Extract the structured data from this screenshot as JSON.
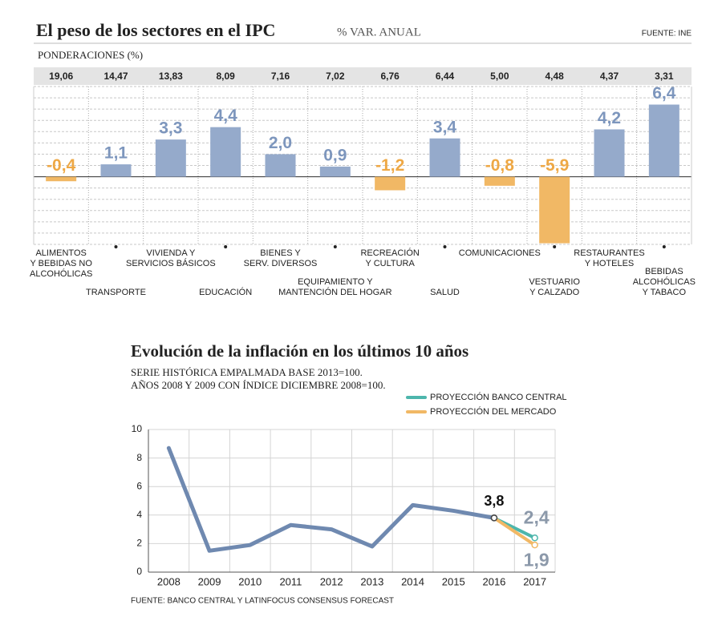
{
  "chart_data": [
    {
      "type": "bar",
      "title": "El peso de los sectores en el IPC",
      "subtitle": "% VAR. ANUAL",
      "source": "FUENTE: INE",
      "weights_title": "PONDERACIONES (%)",
      "weights": [
        "19,06",
        "14,47",
        "13,83",
        "8,09",
        "7,16",
        "7,02",
        "6,76",
        "6,44",
        "5,00",
        "4,48",
        "4,37",
        "3,31"
      ],
      "categories": [
        [
          "ALIMENTOS",
          "Y BEBIDAS NO",
          "ALCOHÓLICAS"
        ],
        [
          "TRANSPORTE"
        ],
        [
          "VIVIENDA Y",
          "SERVICIOS BÁSICOS"
        ],
        [
          "EDUCACIÓN"
        ],
        [
          "BIENES Y",
          "SERV. DIVERSOS"
        ],
        [
          "EQUIPAMIENTO Y",
          "MANTENCIÓN DEL HOGAR"
        ],
        [
          "RECREACIÓN",
          "Y CULTURA"
        ],
        [
          "SALUD"
        ],
        [
          "COMUNICACIONES"
        ],
        [
          "VESTUARIO",
          "Y CALZADO"
        ],
        [
          "RESTAURANTES",
          "Y HOTELES"
        ],
        [
          "BEBIDAS",
          "ALCOHÓLICAS",
          "Y TABACO"
        ]
      ],
      "values": [
        -0.4,
        1.1,
        3.3,
        4.4,
        2.0,
        0.9,
        -1.2,
        3.4,
        -0.8,
        -5.9,
        4.2,
        6.4
      ],
      "value_labels": [
        "-0,4",
        "1,1",
        "3,3",
        "4,4",
        "2,0",
        "0,9",
        "-1,2",
        "3,4",
        "-0,8",
        "-5,9",
        "4,2",
        "6,4"
      ],
      "positive_color": "#95aacb",
      "negative_color": "#f1b865",
      "ylim": [
        -6,
        8
      ],
      "yticks": [
        -6,
        -5,
        -4,
        -3,
        -2,
        -1,
        0,
        1,
        2,
        3,
        4,
        5,
        6,
        7,
        8
      ],
      "grid": true
    },
    {
      "type": "line",
      "title": "Evolución de la inflación en los últimos 10 años",
      "subtitle": [
        "SERIE HISTÓRICA EMPALMADA BASE 2013=100.",
        "AÑOS 2008 Y 2009 CON ÍNDICE DICIEMBRE 2008=100."
      ],
      "source": "FUENTE: BANCO CENTRAL Y LATINFOCUS CONSENSUS FORECAST",
      "categories": [
        "2008",
        "2009",
        "2010",
        "2011",
        "2012",
        "2013",
        "2014",
        "2015",
        "2016",
        "2017"
      ],
      "series": [
        {
          "color": "#6f89b0",
          "values": [
            8.7,
            1.5,
            1.9,
            3.3,
            3.0,
            1.8,
            4.7,
            4.3,
            3.8,
            null
          ],
          "value_labels": [
            null,
            null,
            null,
            null,
            null,
            null,
            null,
            null,
            "3,8",
            null
          ]
        },
        {
          "name": "PROYECCIÓN BANCO CENTRAL",
          "color": "#4db6ac",
          "values": [
            null,
            null,
            null,
            null,
            null,
            null,
            null,
            null,
            3.8,
            2.4
          ],
          "value_labels": [
            null,
            null,
            null,
            null,
            null,
            null,
            null,
            null,
            null,
            "2,4"
          ]
        },
        {
          "name": "PROYECCIÓN DEL MERCADO",
          "color": "#f1b865",
          "values": [
            null,
            null,
            null,
            null,
            null,
            null,
            null,
            null,
            3.8,
            1.9
          ],
          "value_labels": [
            null,
            null,
            null,
            null,
            null,
            null,
            null,
            null,
            null,
            "1,9"
          ]
        }
      ],
      "ylim": [
        0,
        10
      ],
      "yticks": [
        0,
        2,
        4,
        6,
        8,
        10
      ],
      "grid": true
    }
  ]
}
